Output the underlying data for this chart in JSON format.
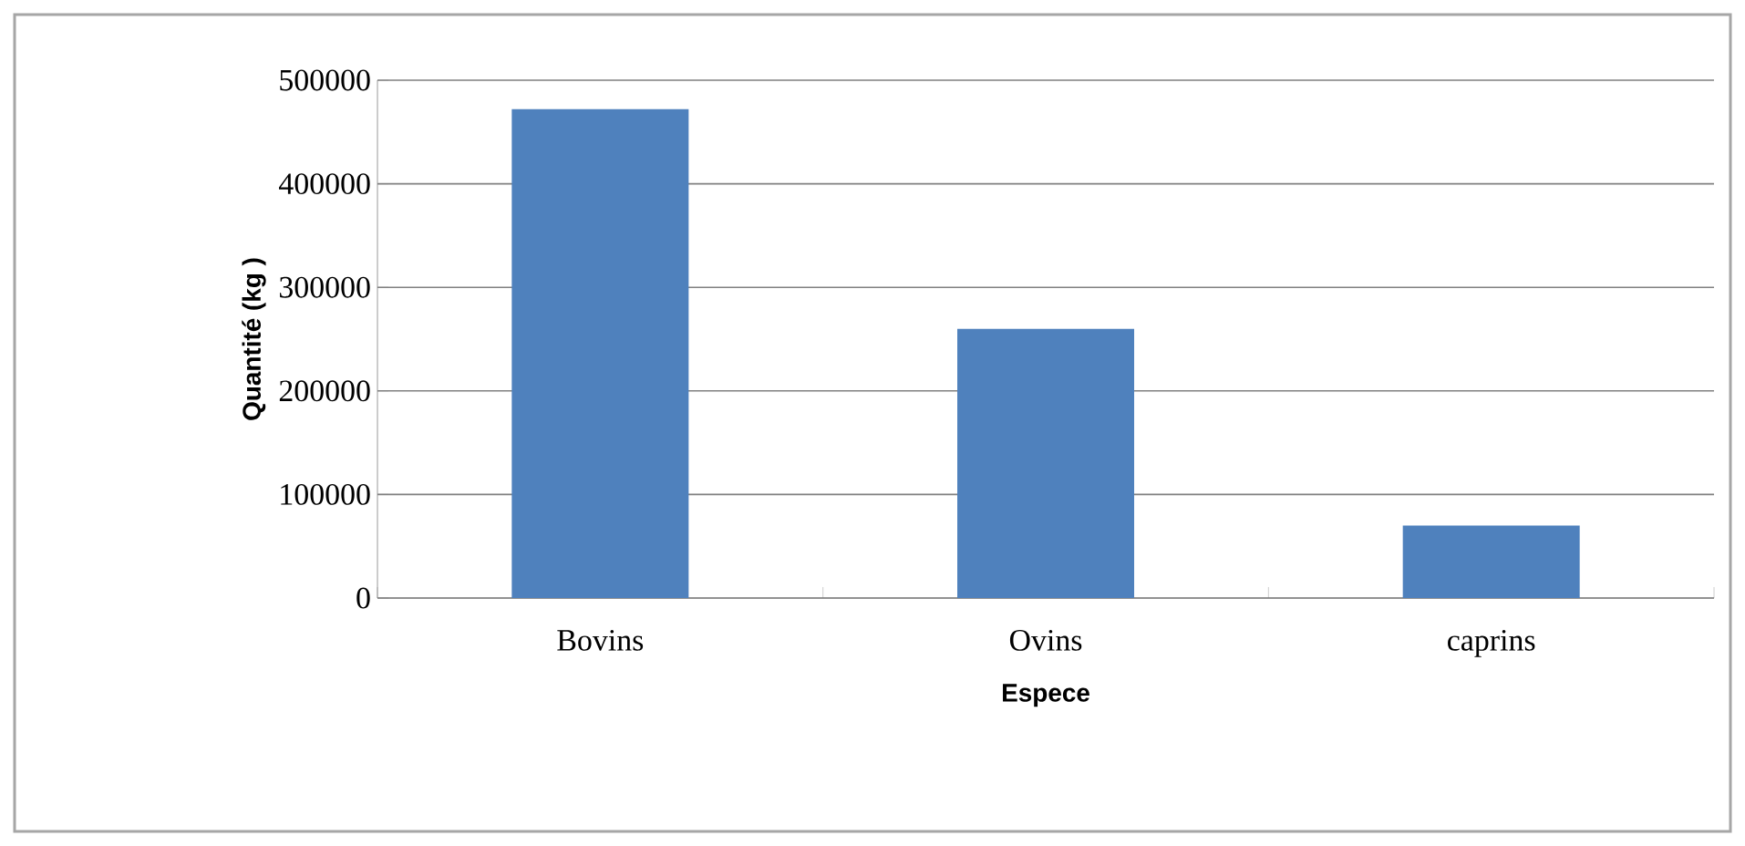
{
  "chart_data": {
    "type": "bar",
    "xlabel": "Espece",
    "ylabel": "Quantité (kg )",
    "categories": [
      "Bovins",
      "Ovins",
      "caprins"
    ],
    "values": [
      472000,
      260000,
      70000
    ],
    "color": "#4f81bd",
    "ylim": [
      0,
      500000
    ],
    "yticks": [
      0,
      100000,
      200000,
      300000,
      400000,
      500000
    ],
    "grid": "y"
  }
}
